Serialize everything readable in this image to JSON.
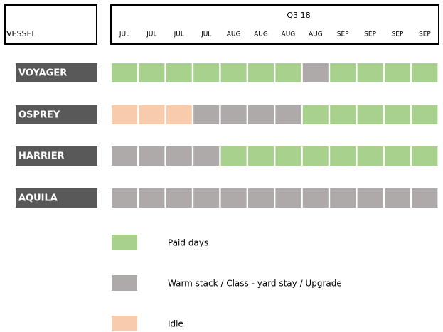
{
  "header": {
    "vessel_label": "VESSEL",
    "period": "Q3 18",
    "months": [
      "JUL",
      "JUL",
      "JUL",
      "JUL",
      "AUG",
      "AUG",
      "AUG",
      "AUG",
      "SEP",
      "SEP",
      "SEP",
      "SEP"
    ]
  },
  "vessels": [
    {
      "name": "VOYAGER",
      "status": [
        0,
        0,
        0,
        0,
        0,
        0,
        0,
        1,
        0,
        0,
        0,
        0
      ]
    },
    {
      "name": "OSPREY",
      "status": [
        2,
        2,
        2,
        1,
        1,
        1,
        1,
        0,
        0,
        0,
        0,
        0
      ]
    },
    {
      "name": "HARRIER",
      "status": [
        1,
        1,
        1,
        1,
        0,
        0,
        0,
        0,
        0,
        0,
        0,
        0
      ]
    },
    {
      "name": "AQUILA",
      "status": [
        1,
        1,
        1,
        1,
        1,
        1,
        1,
        1,
        1,
        1,
        1,
        1
      ]
    }
  ],
  "legend": [
    {
      "label": "Paid days",
      "color": "#a9d18e"
    },
    {
      "label": "Warm stack / Class - yard stay / Upgrade",
      "color": "#aeaaaa"
    },
    {
      "label": "Idle",
      "color": "#f8cbad"
    }
  ]
}
